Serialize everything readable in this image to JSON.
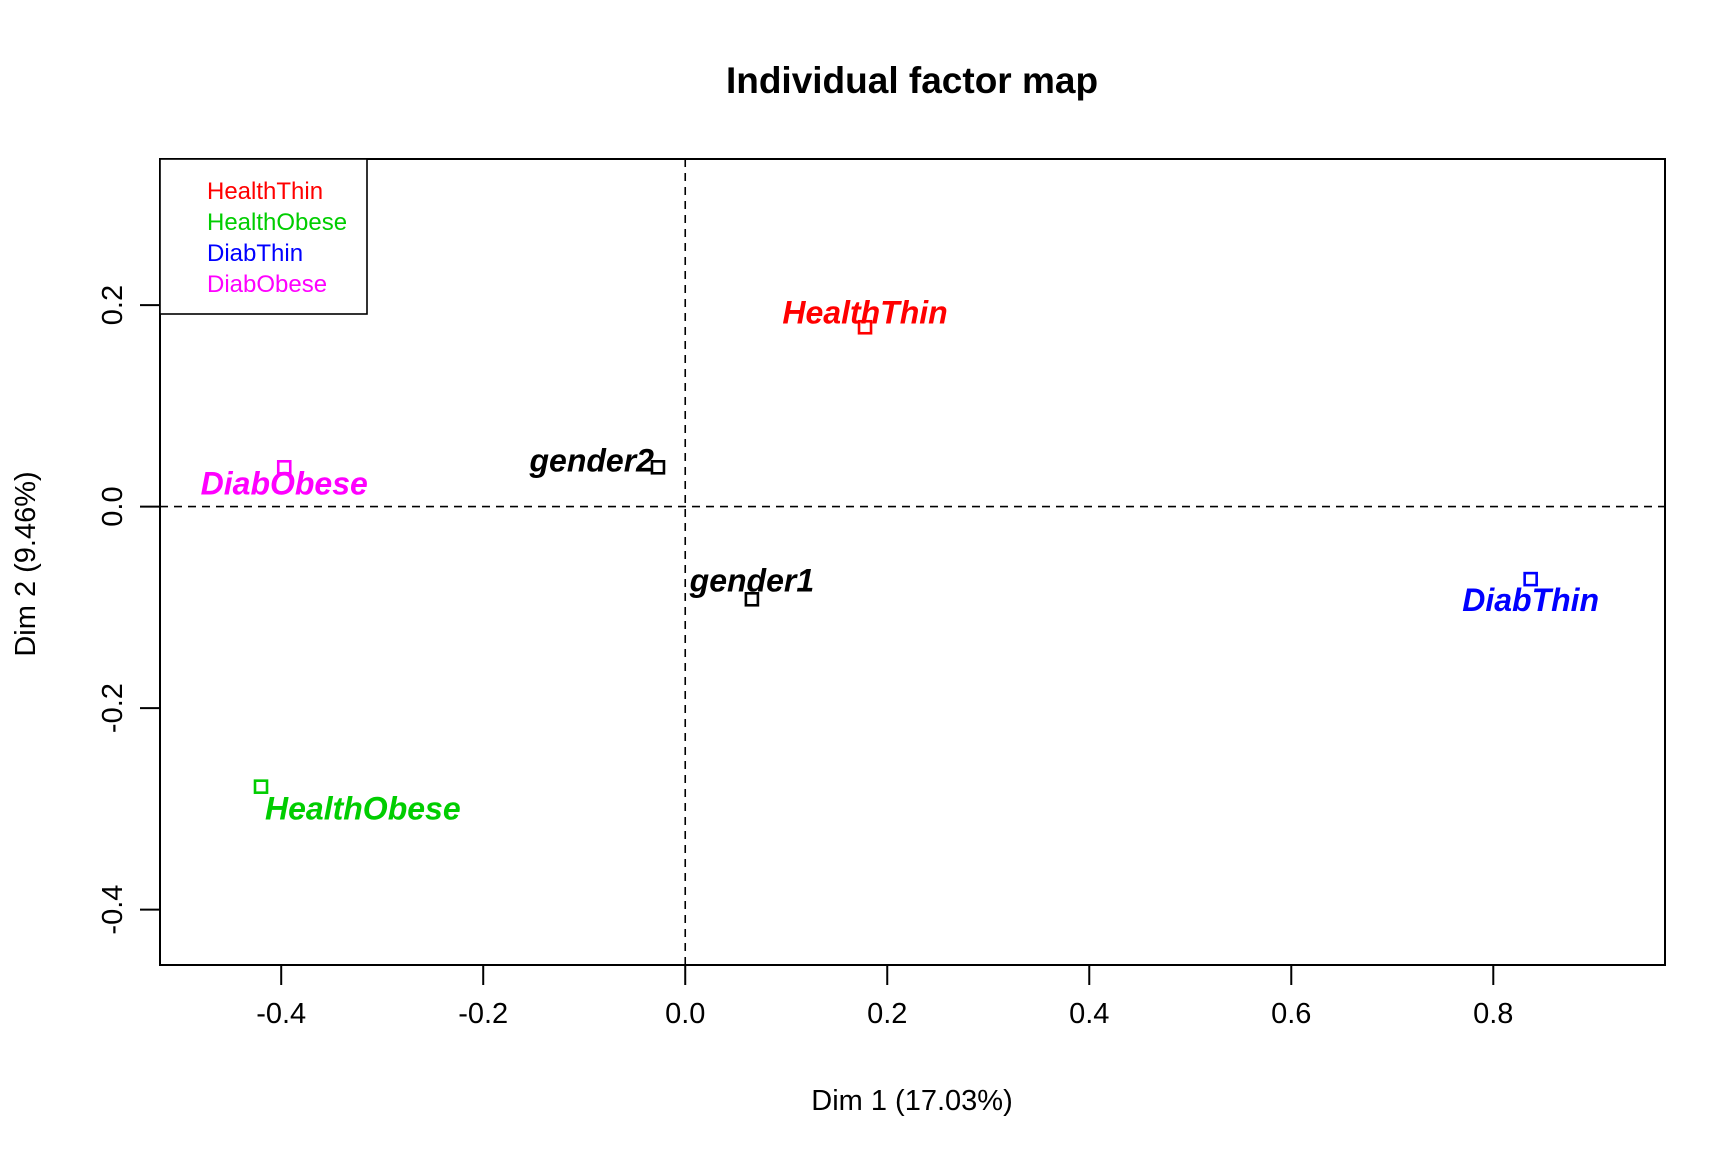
{
  "chart_data": {
    "type": "scatter",
    "title": "Individual factor map",
    "xlabel": "Dim 1 (17.03%)",
    "ylabel": "Dim 2 (9.46%)",
    "xlim": [
      -0.52,
      0.97
    ],
    "ylim": [
      -0.455,
      0.345
    ],
    "x_ticks": [
      -0.4,
      -0.2,
      0.0,
      0.2,
      0.4,
      0.6,
      0.8
    ],
    "x_tick_labels": [
      "-0.4",
      "-0.2",
      "0.0",
      "0.2",
      "0.4",
      "0.6",
      "0.8"
    ],
    "y_ticks": [
      -0.4,
      -0.2,
      0.0,
      0.2
    ],
    "y_tick_labels": [
      "-0.4",
      "-0.2",
      "0.0",
      "0.2"
    ],
    "reference_lines": {
      "x": 0,
      "y": 0,
      "style": "dashed"
    },
    "legend": {
      "position": "top-left",
      "entries": [
        {
          "label": "HealthThin",
          "color": "#ff0000"
        },
        {
          "label": "HealthObese",
          "color": "#00cd00"
        },
        {
          "label": "DiabThin",
          "color": "#0000ff"
        },
        {
          "label": "DiabObese",
          "color": "#ff00ff"
        }
      ]
    },
    "points": [
      {
        "label": "HealthThin",
        "x": 0.178,
        "y": 0.178,
        "color": "#ff0000"
      },
      {
        "label": "HealthObese",
        "x": -0.42,
        "y": -0.278,
        "color": "#00cd00"
      },
      {
        "label": "DiabThin",
        "x": 0.837,
        "y": -0.072,
        "color": "#0000ff"
      },
      {
        "label": "DiabObese",
        "x": -0.397,
        "y": 0.039,
        "color": "#ff00ff"
      },
      {
        "label": "gender2",
        "x": -0.027,
        "y": 0.039,
        "color": "#000000"
      },
      {
        "label": "gender1",
        "x": 0.066,
        "y": -0.092,
        "color": "#000000"
      }
    ]
  }
}
